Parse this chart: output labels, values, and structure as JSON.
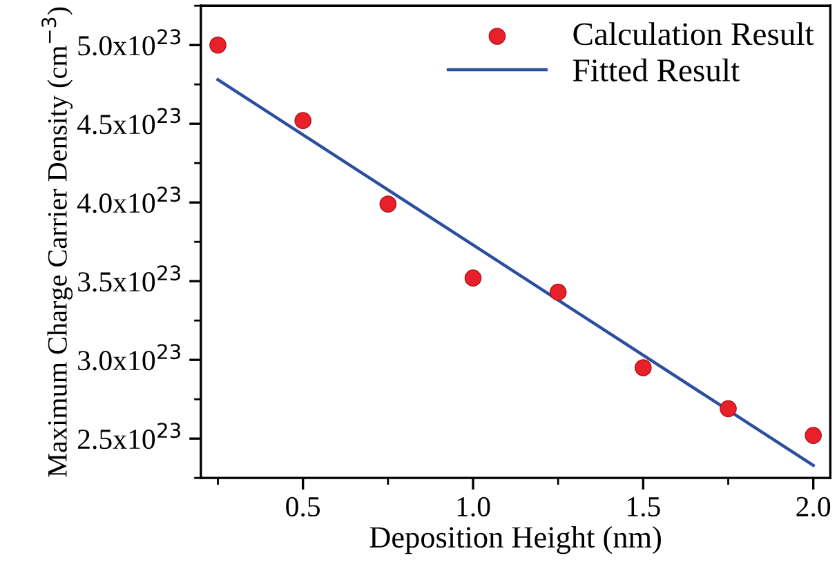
{
  "chart_data": {
    "type": "scatter",
    "xlabel": "Deposition Height (nm)",
    "ylabel": "Maximum Charge Carrier Density (cm$^{−3}$)",
    "series": [
      {
        "name": "Calculation Result",
        "color": "#e8202a",
        "marker": "circle",
        "x": [
          0.25,
          0.5,
          0.75,
          1.0,
          1.25,
          1.5,
          1.75,
          2.0
        ],
        "values": [
          5e+23,
          4.52e+23,
          3.99e+23,
          3.52e+23,
          3.43e+23,
          2.95e+23,
          2.69e+23,
          2.52e+23
        ]
      },
      {
        "name": "Fitted Result",
        "type": "line",
        "color": "#2b4ea0",
        "line_style": "solid",
        "marker": "none",
        "x": [
          0.25,
          2.0
        ],
        "values": [
          4.78e+23,
          2.33e+23
        ]
      }
    ],
    "xlim": [
      0.2,
      2.05
    ],
    "ylim": [
      2.25e+23,
      5.25e+23
    ],
    "xticks": [
      0.5,
      {
        "value": 1.0,
        "label": "1.0"
      },
      1.5,
      {
        "value": 2.0,
        "label": "2.0"
      }
    ],
    "yticks": [
      {
        "value": 2.5e+23,
        "label": "2.5x10$^{23}$"
      },
      {
        "value": 3e+23,
        "label": "3.0x10$^{23}$"
      },
      {
        "value": 3.5e+23,
        "label": "3.5x10$^{23}$"
      },
      {
        "value": 4e+23,
        "label": "4.0x10$^{23}$"
      },
      {
        "value": 4.5e+23,
        "label": "4.5x10$^{23}$"
      },
      {
        "value": 5e+23,
        "label": "5.0x10$^{23}$"
      }
    ],
    "grid": false,
    "legend": "top right"
  }
}
